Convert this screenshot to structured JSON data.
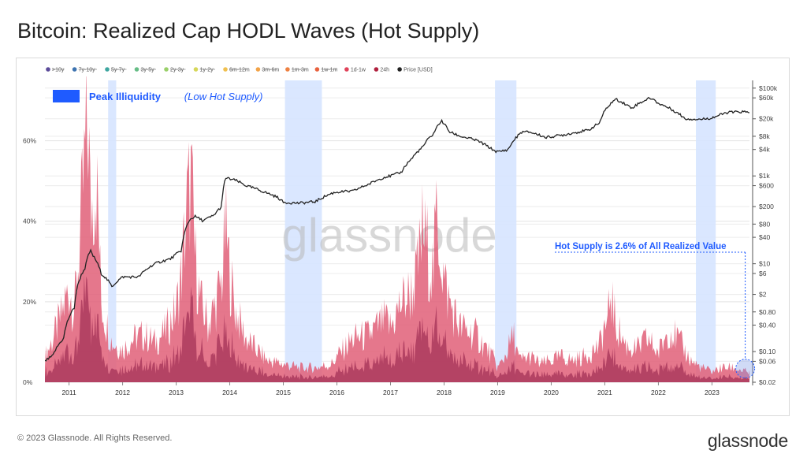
{
  "title": "Bitcoin: Realized Cap HODL Waves (Hot Supply)",
  "footer": {
    "copyright": "© 2023 Glassnode. All Rights Reserved.",
    "brand": "glassnode"
  },
  "watermark": "glassnode",
  "colors": {
    "band": "#d6e4ff",
    "hot_supply": "#e05f78",
    "hot_supply_dark": "#a8365a",
    "price": "#222222",
    "accent": "#1f5bff"
  },
  "chart_data": {
    "type": "area",
    "title": "Bitcoin: Realized Cap HODL Waves (Hot Supply)",
    "legend_position": "top-left",
    "legend": [
      {
        "label": ">10y",
        "color": "#5b4b9a",
        "hidden": true
      },
      {
        "label": "7y-10y",
        "color": "#3d73b0",
        "hidden": true
      },
      {
        "label": "5y-7y",
        "color": "#3ea6a0",
        "hidden": true
      },
      {
        "label": "3y-5y",
        "color": "#66bd86",
        "hidden": true
      },
      {
        "label": "2y-3y",
        "color": "#9ad06a",
        "hidden": true
      },
      {
        "label": "1y-2y",
        "color": "#d6d75a",
        "hidden": true
      },
      {
        "label": "6m-12m",
        "color": "#f0c050",
        "hidden": true
      },
      {
        "label": "3m-6m",
        "color": "#f2a348",
        "hidden": true
      },
      {
        "label": "1m-3m",
        "color": "#ee8142",
        "hidden": true
      },
      {
        "label": "1w-1m",
        "color": "#e8613e",
        "hidden": true
      },
      {
        "label": "1d-1w",
        "color": "#e0435a",
        "hidden": false
      },
      {
        "label": "24h",
        "color": "#b0203e",
        "hidden": false
      },
      {
        "label": "Price [USD]",
        "color": "#222222",
        "hidden": false
      }
    ],
    "x_ticks": [
      "2011",
      "2012",
      "2013",
      "2014",
      "2015",
      "2016",
      "2017",
      "2018",
      "2019",
      "2020",
      "2021",
      "2022",
      "2023"
    ],
    "x_range": [
      2010.55,
      2023.7
    ],
    "y_left": {
      "ticks": [
        "0%",
        "20%",
        "40%",
        "60%"
      ],
      "range": [
        0,
        75
      ]
    },
    "y_right": {
      "scale": "log",
      "range": [
        0.02,
        150000
      ],
      "ticks": [
        "$100k",
        "$60k",
        "$20k",
        "$8k",
        "$4k",
        "$1k",
        "$600",
        "$200",
        "$80",
        "$40",
        "$10",
        "$6",
        "$2",
        "$0.80",
        "$0.40",
        "$0.10",
        "$0.06",
        "$0.02"
      ],
      "tick_values": [
        100000,
        60000,
        20000,
        8000,
        4000,
        1000,
        600,
        200,
        80,
        40,
        10,
        6,
        2,
        0.8,
        0.4,
        0.1,
        0.06,
        0.02
      ]
    },
    "grid": true,
    "bands": [
      [
        2011.73,
        2011.88
      ],
      [
        2015.03,
        2015.72
      ],
      [
        2018.95,
        2019.35
      ],
      [
        2022.7,
        2023.07
      ]
    ],
    "band_legend": {
      "label": "Peak Illiquidity",
      "sublabel": "(Low Hot Supply)"
    },
    "annotation": {
      "text": "Hot Supply is 2.6% of All Realized Value",
      "x": 2023.65,
      "value": 2.6
    },
    "hot_supply_pct": {
      "x": [
        2010.55,
        2010.7,
        2010.85,
        2011.0,
        2011.1,
        2011.2,
        2011.3,
        2011.36,
        2011.4,
        2011.45,
        2011.5,
        2011.55,
        2011.6,
        2011.7,
        2011.8,
        2011.9,
        2012.0,
        2012.2,
        2012.4,
        2012.6,
        2012.8,
        2013.0,
        2013.1,
        2013.2,
        2013.28,
        2013.35,
        2013.45,
        2013.6,
        2013.75,
        2013.85,
        2013.92,
        2014.0,
        2014.1,
        2014.3,
        2014.5,
        2014.7,
        2015.0,
        2015.3,
        2015.6,
        2015.9,
        2016.0,
        2016.3,
        2016.6,
        2016.9,
        2017.0,
        2017.2,
        2017.4,
        2017.5,
        2017.6,
        2017.7,
        2017.8,
        2017.85,
        2017.92,
        2018.0,
        2018.1,
        2018.3,
        2018.6,
        2018.9,
        2019.0,
        2019.1,
        2019.3,
        2019.4,
        2019.6,
        2019.8,
        2020.0,
        2020.2,
        2020.4,
        2020.6,
        2020.8,
        2020.9,
        2021.0,
        2021.05,
        2021.1,
        2021.2,
        2021.4,
        2021.6,
        2021.8,
        2021.9,
        2022.0,
        2022.2,
        2022.4,
        2022.6,
        2022.8,
        2023.0,
        2023.2,
        2023.4,
        2023.6,
        2023.7
      ],
      "values": [
        7,
        12,
        18,
        26,
        20,
        38,
        62,
        72,
        46,
        52,
        58,
        44,
        22,
        16,
        11,
        10,
        9,
        12,
        13,
        11,
        14,
        20,
        30,
        48,
        56,
        35,
        22,
        16,
        22,
        28,
        42,
        30,
        20,
        12,
        9,
        6,
        5,
        4,
        4,
        5,
        7,
        12,
        13,
        17,
        15,
        22,
        25,
        30,
        42,
        36,
        30,
        45,
        40,
        28,
        22,
        15,
        13,
        7,
        4,
        6,
        13,
        6,
        7,
        5,
        6,
        7,
        6,
        7,
        9,
        10,
        16,
        14,
        26,
        16,
        10,
        9,
        12,
        10,
        8,
        15,
        11,
        6,
        4,
        3,
        4,
        4,
        3,
        2.6
      ]
    },
    "price_usd": {
      "x": [
        2010.55,
        2010.7,
        2010.9,
        2011.1,
        2011.3,
        2011.4,
        2011.45,
        2011.6,
        2011.8,
        2011.9,
        2012.0,
        2012.3,
        2012.6,
        2012.9,
        2013.1,
        2013.25,
        2013.35,
        2013.5,
        2013.7,
        2013.85,
        2013.92,
        2014.1,
        2014.3,
        2014.6,
        2014.9,
        2015.0,
        2015.3,
        2015.6,
        2015.9,
        2016.0,
        2016.3,
        2016.6,
        2016.9,
        2017.0,
        2017.2,
        2017.4,
        2017.6,
        2017.8,
        2017.95,
        2018.1,
        2018.3,
        2018.6,
        2018.9,
        2019.0,
        2019.2,
        2019.45,
        2019.6,
        2019.9,
        2020.2,
        2020.4,
        2020.7,
        2020.9,
        2021.0,
        2021.2,
        2021.5,
        2021.85,
        2022.0,
        2022.3,
        2022.5,
        2022.8,
        2023.0,
        2023.3,
        2023.6,
        2023.7
      ],
      "values": [
        0.06,
        0.08,
        0.2,
        1,
        8,
        20,
        15,
        6,
        3,
        4,
        5,
        5,
        10,
        13,
        20,
        100,
        120,
        95,
        125,
        200,
        900,
        800,
        600,
        450,
        320,
        250,
        240,
        260,
        400,
        430,
        450,
        650,
        950,
        1000,
        1200,
        2500,
        4500,
        9000,
        18000,
        10000,
        8000,
        6500,
        4000,
        3500,
        4000,
        10000,
        10000,
        7500,
        8500,
        9500,
        11000,
        16000,
        30000,
        56000,
        35000,
        60000,
        45000,
        30000,
        20000,
        19500,
        21000,
        28000,
        29000,
        27000
      ]
    }
  }
}
